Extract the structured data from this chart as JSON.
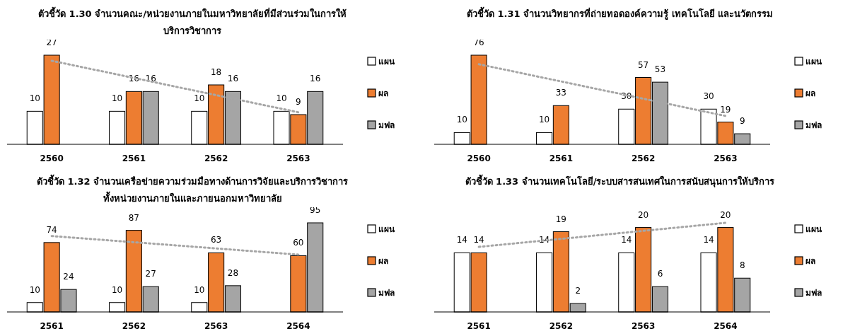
{
  "chart_data": [
    {
      "type": "bar",
      "title": "ตัวชี้วัด 1.30 จำนวนคณะ/หน่วยงานภายในมหาวิทยาลัยที่มีส่วนร่วมในการให้บริการวิชาการ",
      "categories": [
        "2560",
        "2561",
        "2562",
        "2563"
      ],
      "data_labels": true,
      "legend": "right",
      "series": [
        {
          "name": "แผน",
          "color": "#ffffff",
          "values": [
            10,
            10,
            10,
            10
          ]
        },
        {
          "name": "ผล",
          "color": "#ed7d31",
          "values": [
            27,
            16,
            18,
            9
          ]
        },
        {
          "name": "มฟล",
          "color": "#a5a5a5",
          "values": [
            null,
            16,
            16,
            16
          ]
        },
        {
          "type": "line",
          "color": "#a6a6a6",
          "line_style": "dotted",
          "values": [
            25.3,
            20.1,
            14.9,
            9.7
          ],
          "value_labels": [
            null,
            null,
            null,
            null
          ]
        }
      ]
    },
    {
      "type": "bar",
      "title": "ตัวชี้วัด 1.31 จำนวนวิทยากรที่ถ่ายทอดองค์ความรู้ เทคโนโลยี และนวัตกรรม",
      "categories": [
        "2560",
        "2561",
        "2562",
        "2563"
      ],
      "data_labels": true,
      "legend": "right",
      "series": [
        {
          "name": "แผน",
          "color": "#ffffff",
          "values": [
            10,
            10,
            30,
            30
          ]
        },
        {
          "name": "ผล",
          "color": "#ed7d31",
          "values": [
            76,
            33,
            57,
            19
          ]
        },
        {
          "name": "มฟล",
          "color": "#a5a5a5",
          "values": [
            null,
            null,
            53,
            9
          ]
        },
        {
          "type": "line",
          "color": "#a6a6a6",
          "line_style": "dotted",
          "values": [
            68.3,
            53.6,
            38.9,
            24.2
          ],
          "value_labels": [
            null,
            null,
            null,
            null
          ]
        }
      ]
    },
    {
      "type": "bar",
      "title": "ตัวชี้วัด 1.32 จำนวนเครือข่ายความร่วมมือทางด้านการวิจัยและบริการวิชาการทั้งหน่วยงานภายในและภายนอกมหาวิทยาลัย",
      "categories": [
        "2561",
        "2562",
        "2563",
        "2564"
      ],
      "data_labels": true,
      "legend": "right",
      "series": [
        {
          "name": "แผน",
          "color": "#ffffff",
          "values": [
            10,
            10,
            10,
            null
          ]
        },
        {
          "name": "ผล",
          "color": "#ed7d31",
          "values": [
            74,
            87,
            63,
            60
          ]
        },
        {
          "name": "มฟล",
          "color": "#a5a5a5",
          "values": [
            24,
            27,
            28,
            95
          ]
        },
        {
          "type": "line",
          "color": "#a6a6a6",
          "line_style": "dotted",
          "values": [
            80.9,
            74.3,
            67.7,
            61.1
          ],
          "value_labels": [
            null,
            null,
            null,
            null
          ]
        }
      ]
    },
    {
      "type": "bar",
      "title": "ตัวชี้วัด 1.33 จำนวนเทคโนโลยี/ระบบสารสนเทศในการสนับสนุนการให้บริการ",
      "categories": [
        "2561",
        "2562",
        "2563",
        "2564"
      ],
      "data_labels": true,
      "legend": "right",
      "series": [
        {
          "name": "แผน",
          "color": "#ffffff",
          "values": [
            14,
            14,
            14,
            14
          ]
        },
        {
          "name": "ผล",
          "color": "#ed7d31",
          "values": [
            14,
            19,
            20,
            20
          ]
        },
        {
          "name": "มฟล",
          "color": "#a5a5a5",
          "values": [
            null,
            2,
            6,
            8
          ]
        },
        {
          "type": "line",
          "color": "#a6a6a6",
          "line_style": "dotted",
          "values": [
            15.4,
            17.3,
            19.2,
            21.1
          ],
          "value_labels": [
            null,
            null,
            null,
            null
          ]
        }
      ]
    }
  ]
}
